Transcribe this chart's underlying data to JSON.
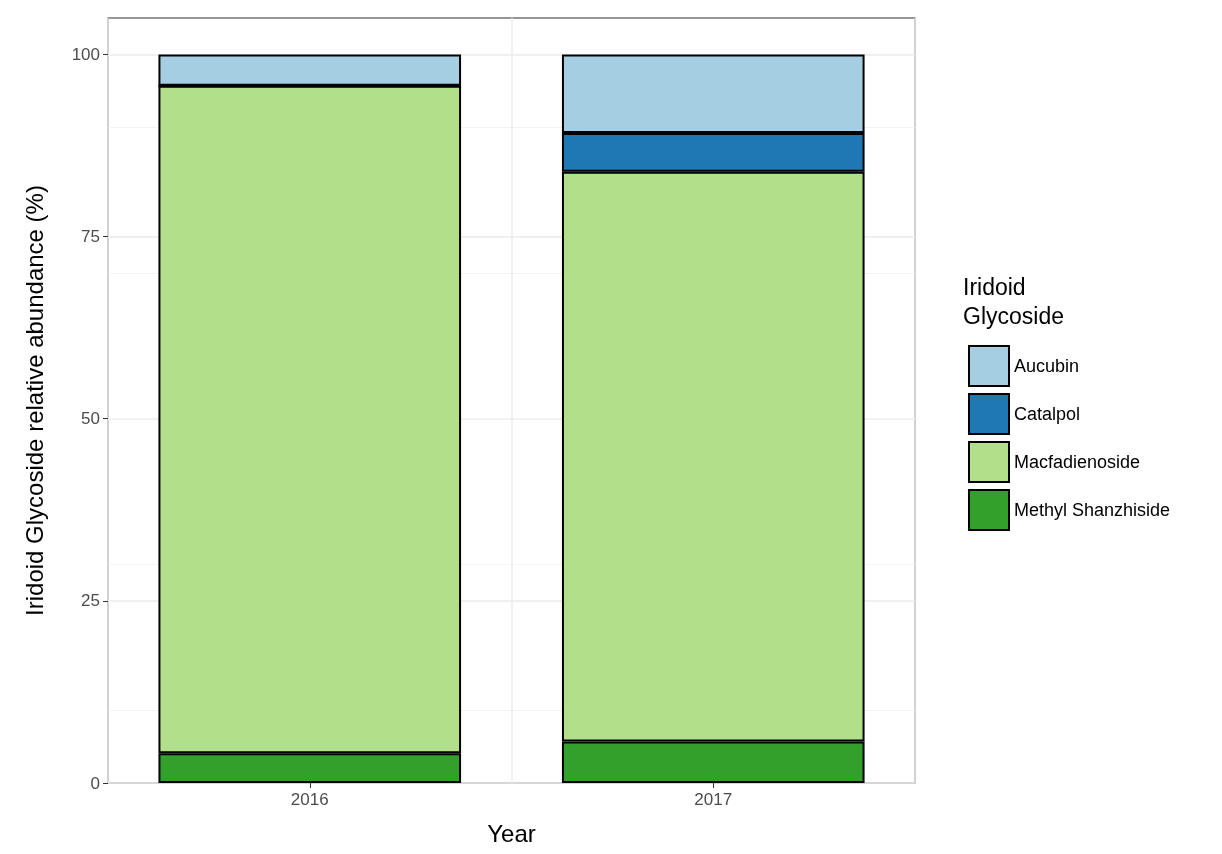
{
  "chart_data": {
    "type": "bar",
    "stacked": true,
    "xlabel": "Year",
    "ylabel": "Iridoid Glycoside relative abundance (%)",
    "legend_title": "Iridoid Glycoside",
    "categories": [
      "2016",
      "2017"
    ],
    "series": [
      {
        "name": "Methyl Shanzhiside",
        "color": "#33a02c",
        "values": [
          4.1,
          5.7
        ]
      },
      {
        "name": "Macfadienoside",
        "color": "#b2df8a",
        "values": [
          91.6,
          78.2
        ]
      },
      {
        "name": "Catalpol",
        "color": "#1f78b4",
        "values": [
          0,
          5.3
        ]
      },
      {
        "name": "Aucubin",
        "color": "#a6cee3",
        "values": [
          4.3,
          10.8
        ]
      }
    ],
    "ylim": [
      0,
      105
    ],
    "yticks": [
      0,
      25,
      50,
      75,
      100
    ],
    "grid": true,
    "legend": "right"
  }
}
